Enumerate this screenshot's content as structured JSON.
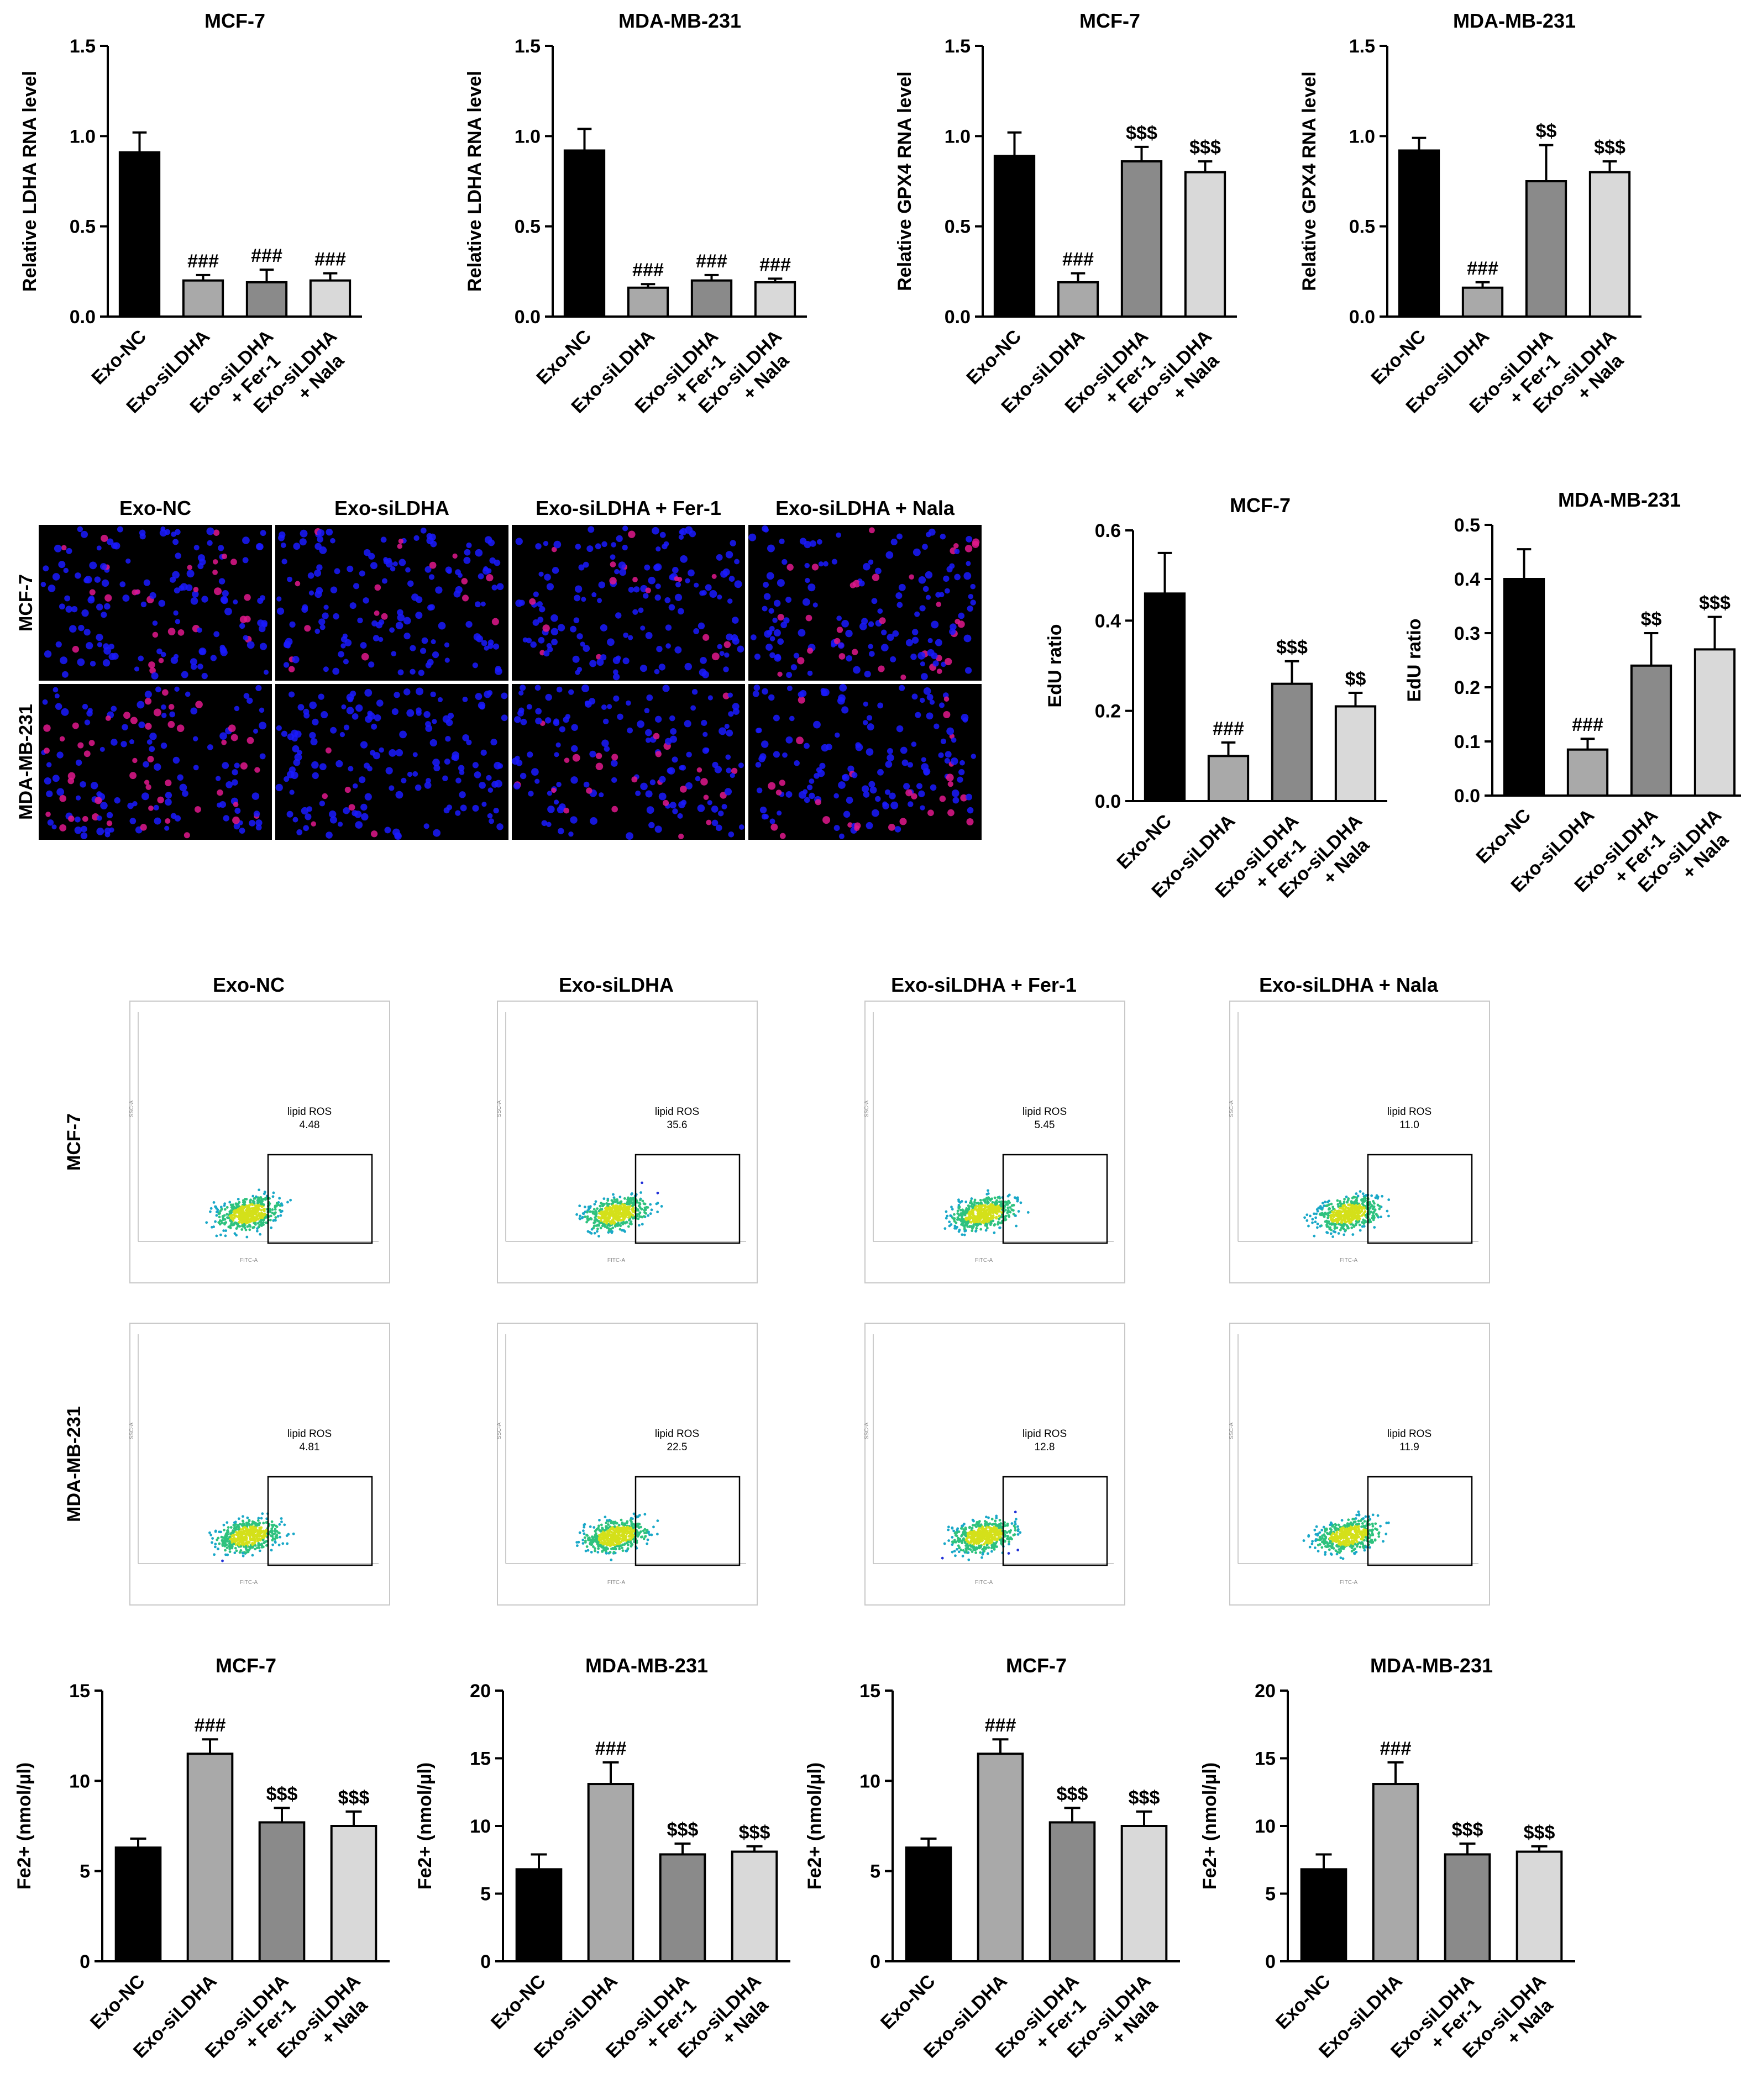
{
  "groups": [
    "Exo-NC",
    "Exo-siLDHA",
    "Exo-siLDHA + Fer-1",
    "Exo-siLDHA + Nala"
  ],
  "group_tick_labels": [
    [
      "Exo-NC"
    ],
    [
      "Exo-siLDHA"
    ],
    [
      "Exo-siLDHA",
      "+ Fer-1"
    ],
    [
      "Exo-siLDHA",
      "+ Nala"
    ]
  ],
  "colors": {
    "bars": [
      "#000000",
      "#a9a9a9",
      "#8a8a8a",
      "#d9d9d9"
    ],
    "nuclei": "#1a1aff",
    "edu": "#e0188c",
    "gate": "#000000"
  },
  "chart_data": [
    {
      "type": "bar",
      "title": "MCF-7",
      "ylabel": "Relative LDHA RNA level",
      "ylim": [
        0,
        1.5
      ],
      "yticks": [
        "0.0",
        "0.5",
        "1.0",
        "1.5"
      ],
      "values": [
        0.91,
        0.2,
        0.19,
        0.2
      ],
      "errors": [
        0.11,
        0.03,
        0.07,
        0.04
      ],
      "annotations": [
        "",
        "###",
        "###",
        "###"
      ]
    },
    {
      "type": "bar",
      "title": "MDA-MB-231",
      "ylabel": "Relative LDHA RNA level",
      "ylim": [
        0,
        1.5
      ],
      "yticks": [
        "0.0",
        "0.5",
        "1.0",
        "1.5"
      ],
      "values": [
        0.92,
        0.16,
        0.2,
        0.19
      ],
      "errors": [
        0.12,
        0.02,
        0.03,
        0.02
      ],
      "annotations": [
        "",
        "###",
        "###",
        "###"
      ]
    },
    {
      "type": "bar",
      "title": "MCF-7",
      "ylabel": "Relative GPX4 RNA level",
      "ylim": [
        0,
        1.5
      ],
      "yticks": [
        "0.0",
        "0.5",
        "1.0",
        "1.5"
      ],
      "values": [
        0.89,
        0.19,
        0.86,
        0.8
      ],
      "errors": [
        0.13,
        0.05,
        0.08,
        0.06
      ],
      "annotations": [
        "",
        "###",
        "$$$",
        "$$$"
      ]
    },
    {
      "type": "bar",
      "title": "MDA-MB-231",
      "ylabel": "Relative GPX4 RNA level",
      "ylim": [
        0,
        1.5
      ],
      "yticks": [
        "0.0",
        "0.5",
        "1.0",
        "1.5"
      ],
      "values": [
        0.92,
        0.16,
        0.75,
        0.8
      ],
      "errors": [
        0.07,
        0.03,
        0.2,
        0.06
      ],
      "annotations": [
        "",
        "###",
        "$$",
        "$$$"
      ]
    },
    {
      "type": "bar",
      "title": "MCF-7",
      "ylabel": "EdU ratio",
      "ylim": [
        0,
        0.6
      ],
      "yticks": [
        "0.0",
        "0.2",
        "0.4",
        "0.6"
      ],
      "values": [
        0.46,
        0.1,
        0.26,
        0.21
      ],
      "errors": [
        0.09,
        0.03,
        0.05,
        0.03
      ],
      "annotations": [
        "",
        "###",
        "$$$",
        "$$"
      ]
    },
    {
      "type": "bar",
      "title": "MDA-MB-231",
      "ylabel": "EdU ratio",
      "ylim": [
        0,
        0.5
      ],
      "yticks": [
        "0.0",
        "0.1",
        "0.2",
        "0.3",
        "0.4",
        "0.5"
      ],
      "values": [
        0.4,
        0.085,
        0.24,
        0.27
      ],
      "errors": [
        0.055,
        0.02,
        0.06,
        0.06
      ],
      "annotations": [
        "",
        "###",
        "$$",
        "$$$"
      ]
    },
    {
      "type": "bar",
      "title": "MCF-7",
      "ylabel": "Fe2+ (nmol/µl)",
      "ylim": [
        0,
        15
      ],
      "yticks": [
        "0",
        "5",
        "10",
        "15"
      ],
      "values": [
        6.3,
        11.5,
        7.7,
        7.5
      ],
      "errors": [
        0.5,
        0.8,
        0.8,
        0.8
      ],
      "annotations": [
        "",
        "###",
        "$$$",
        "$$$"
      ]
    },
    {
      "type": "bar",
      "title": "MDA-MB-231",
      "ylabel": "Fe2+ (nmol/µl)",
      "ylim": [
        0,
        20
      ],
      "yticks": [
        "0",
        "5",
        "10",
        "15",
        "20"
      ],
      "values": [
        6.8,
        13.1,
        7.9,
        8.1
      ],
      "errors": [
        1.1,
        1.6,
        0.8,
        0.4
      ],
      "annotations": [
        "",
        "###",
        "$$$",
        "$$$"
      ]
    },
    {
      "type": "bar",
      "title": "MCF-7",
      "ylabel": "Fe2+ (nmol/µl)",
      "ylim": [
        0,
        15
      ],
      "yticks": [
        "0",
        "5",
        "10",
        "15"
      ],
      "values": [
        6.3,
        11.5,
        7.7,
        7.5
      ],
      "errors": [
        0.5,
        0.8,
        0.8,
        0.8
      ],
      "annotations": [
        "",
        "###",
        "$$$",
        "$$$"
      ]
    },
    {
      "type": "bar",
      "title": "MDA-MB-231",
      "ylabel": "Fe2+ (nmol/µl)",
      "ylim": [
        0,
        20
      ],
      "yticks": [
        "0",
        "5",
        "10",
        "15",
        "20"
      ],
      "values": [
        6.8,
        13.1,
        7.9,
        8.1
      ],
      "errors": [
        1.1,
        1.6,
        0.8,
        0.4
      ],
      "annotations": [
        "",
        "###",
        "$$$",
        "$$$"
      ]
    }
  ],
  "edu_images": {
    "column_headers": [
      "Exo-NC",
      "Exo-siLDHA",
      "Exo-siLDHA + Fer-1",
      "Exo-siLDHA + Nala"
    ],
    "row_labels": [
      "MCF-7",
      "MDA-MB-231"
    ],
    "edu_density": [
      [
        0.22,
        0.07,
        0.13,
        0.2
      ],
      [
        0.3,
        0.05,
        0.14,
        0.18
      ]
    ]
  },
  "flow": {
    "column_headers": [
      "Exo-NC",
      "Exo-siLDHA",
      "Exo-siLDHA + Fer-1",
      "Exo-siLDHA + Nala"
    ],
    "row_labels": [
      "MCF-7",
      "MDA-MB-231"
    ],
    "gate_label": "lipid ROS",
    "x_axis_label": "FITC-A",
    "y_axis_label": "SSC-A",
    "percentages": [
      [
        "4.48",
        "35.6",
        "5.45",
        "11.0"
      ],
      [
        "4.81",
        "22.5",
        "12.8",
        "11.9"
      ]
    ]
  }
}
